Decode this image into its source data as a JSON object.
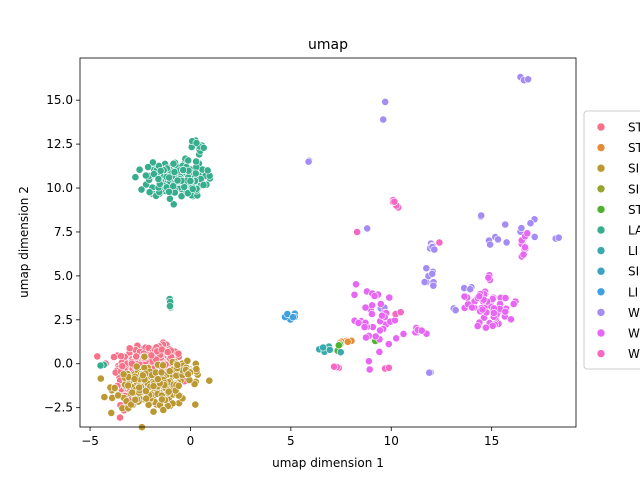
{
  "chart_data": {
    "type": "scatter",
    "title": "umap",
    "xlabel": "umap dimension 1",
    "ylabel": "umap dimension 2",
    "xlim": [
      -5.5,
      19.2
    ],
    "ylim": [
      -3.6,
      17.4
    ],
    "x_ticks": [
      {
        "value": -5,
        "label": "−5"
      },
      {
        "value": 0,
        "label": "0"
      },
      {
        "value": 5,
        "label": "5"
      },
      {
        "value": 10,
        "label": "10"
      },
      {
        "value": 15,
        "label": "15"
      }
    ],
    "y_ticks": [
      {
        "value": -2.5,
        "label": "−2.5"
      },
      {
        "value": 0,
        "label": "0.0"
      },
      {
        "value": 2.5,
        "label": "2.5"
      },
      {
        "value": 5,
        "label": "5.0"
      },
      {
        "value": 7.5,
        "label": "7.5"
      },
      {
        "value": 10,
        "label": "10.0"
      },
      {
        "value": 12.5,
        "label": "12.5"
      },
      {
        "value": 15,
        "label": "15.0"
      }
    ],
    "grid": false,
    "legend_position": "right, outside plot",
    "series": [
      {
        "name": "ST",
        "color": "#f77189",
        "clusters": [
          {
            "x": -2.2,
            "y": -0.1,
            "sx": 0.7,
            "sy": 0.45,
            "n": 260
          },
          {
            "x": -3.2,
            "y": -1.2,
            "sx": 0.3,
            "sy": 0.55,
            "n": 40
          },
          {
            "x": -1.5,
            "y": 0.5,
            "sx": 0.5,
            "sy": 0.3,
            "n": 40
          }
        ]
      },
      {
        "name": "ST",
        "color": "#e58d36",
        "clusters": [
          {
            "x": 7.6,
            "y": 1.3,
            "sx": 0.35,
            "sy": 0.12,
            "n": 5
          }
        ]
      },
      {
        "name": "SI",
        "color": "#bb9832",
        "clusters": [
          {
            "x": -1.9,
            "y": -1.4,
            "sx": 0.9,
            "sy": 0.55,
            "n": 250
          },
          {
            "x": -0.3,
            "y": -0.3,
            "sx": 0.35,
            "sy": 0.35,
            "n": 35
          }
        ]
      },
      {
        "name": "SI",
        "color": "#97a431",
        "clusters": []
      },
      {
        "name": "ST",
        "color": "#50b131",
        "clusters": [
          {
            "x": 7.5,
            "y": 0.9,
            "sx": 0.2,
            "sy": 0.2,
            "n": 3
          },
          {
            "x": 9.2,
            "y": 1.3,
            "sx": 0.1,
            "sy": 0.1,
            "n": 1
          }
        ]
      },
      {
        "name": "LA",
        "color": "#36ad8d",
        "clusters": [
          {
            "x": -0.7,
            "y": 10.5,
            "sx": 0.7,
            "sy": 0.5,
            "n": 230
          },
          {
            "x": 0.4,
            "y": 12.3,
            "sx": 0.15,
            "sy": 0.25,
            "n": 12
          },
          {
            "x": -1.0,
            "y": 3.3,
            "sx": 0.05,
            "sy": 0.2,
            "n": 5
          },
          {
            "x": -4.4,
            "y": -0.15,
            "sx": 0.1,
            "sy": 0.05,
            "n": 2
          }
        ]
      },
      {
        "name": "LI",
        "color": "#38aaac",
        "clusters": [
          {
            "x": 6.8,
            "y": 0.8,
            "sx": 0.3,
            "sy": 0.15,
            "n": 6
          }
        ]
      },
      {
        "name": "SI",
        "color": "#3ba3c2",
        "clusters": []
      },
      {
        "name": "LI",
        "color": "#3ea1dd",
        "clusters": [
          {
            "x": 5.0,
            "y": 2.6,
            "sx": 0.2,
            "sy": 0.15,
            "n": 8
          },
          {
            "x": 8.7,
            "y": 3.2,
            "sx": 0.1,
            "sy": 0.1,
            "n": 1
          }
        ]
      },
      {
        "name": "W",
        "color": "#a48cf4",
        "clusters": [
          {
            "x": 9.7,
            "y": 14.9,
            "sx": 0.05,
            "sy": 0.05,
            "n": 1
          },
          {
            "x": 9.6,
            "y": 13.9,
            "sx": 0.05,
            "sy": 0.05,
            "n": 1
          },
          {
            "x": 16.6,
            "y": 16.3,
            "sx": 0.2,
            "sy": 0.1,
            "n": 4
          },
          {
            "x": 5.9,
            "y": 11.5,
            "sx": 0.08,
            "sy": 0.05,
            "n": 3
          },
          {
            "x": 12.1,
            "y": 6.7,
            "sx": 0.2,
            "sy": 0.2,
            "n": 6
          },
          {
            "x": 11.9,
            "y": 5.0,
            "sx": 0.15,
            "sy": 0.4,
            "n": 8
          },
          {
            "x": 14.5,
            "y": 8.4,
            "sx": 0.05,
            "sy": 0.05,
            "n": 2
          },
          {
            "x": 16.3,
            "y": 7.6,
            "sx": 0.5,
            "sy": 0.3,
            "n": 8
          },
          {
            "x": 15.1,
            "y": 7.0,
            "sx": 0.3,
            "sy": 0.1,
            "n": 4
          },
          {
            "x": 18.3,
            "y": 7.1,
            "sx": 0.1,
            "sy": 0.05,
            "n": 2
          },
          {
            "x": 13.9,
            "y": 4.3,
            "sx": 0.15,
            "sy": 0.1,
            "n": 3
          },
          {
            "x": 13.1,
            "y": 3.1,
            "sx": 0.1,
            "sy": 0.05,
            "n": 2
          },
          {
            "x": 12.0,
            "y": -0.5,
            "sx": 0.1,
            "sy": 0.05,
            "n": 2
          },
          {
            "x": 9.5,
            "y": 3.1,
            "sx": 0.15,
            "sy": 0.1,
            "n": 2
          },
          {
            "x": 8.8,
            "y": 7.7,
            "sx": 0.05,
            "sy": 0.05,
            "n": 1
          }
        ]
      },
      {
        "name": "W",
        "color": "#e866f4",
        "clusters": [
          {
            "x": 15.0,
            "y": 3.0,
            "sx": 0.45,
            "sy": 0.45,
            "n": 45
          },
          {
            "x": 14.5,
            "y": 3.8,
            "sx": 0.3,
            "sy": 0.3,
            "n": 10
          },
          {
            "x": 9.2,
            "y": 2.5,
            "sx": 0.6,
            "sy": 0.9,
            "n": 40
          },
          {
            "x": 11.5,
            "y": 1.8,
            "sx": 0.4,
            "sy": 0.2,
            "n": 8
          },
          {
            "x": 15.0,
            "y": 4.9,
            "sx": 0.1,
            "sy": 0.1,
            "n": 3
          },
          {
            "x": 16.6,
            "y": 6.5,
            "sx": 0.2,
            "sy": 0.25,
            "n": 6
          },
          {
            "x": 16.7,
            "y": 7.3,
            "sx": 0.15,
            "sy": 0.1,
            "n": 3
          },
          {
            "x": 13.8,
            "y": 3.5,
            "sx": 0.2,
            "sy": 0.2,
            "n": 4
          },
          {
            "x": 16.1,
            "y": 3.4,
            "sx": 0.05,
            "sy": 0.05,
            "n": 1
          }
        ]
      },
      {
        "name": "W",
        "color": "#f668c2",
        "clusters": [
          {
            "x": 10.3,
            "y": 9.0,
            "sx": 0.15,
            "sy": 0.15,
            "n": 5
          },
          {
            "x": 12.4,
            "y": 6.9,
            "sx": 0.05,
            "sy": 0.05,
            "n": 1
          },
          {
            "x": 8.3,
            "y": 7.5,
            "sx": 0.05,
            "sy": 0.05,
            "n": 1
          },
          {
            "x": 7.3,
            "y": -0.3,
            "sx": 0.1,
            "sy": 0.2,
            "n": 3
          },
          {
            "x": 10.5,
            "y": 3.0,
            "sx": 0.1,
            "sy": 0.1,
            "n": 2
          },
          {
            "x": 9.9,
            "y": -0.2,
            "sx": 0.15,
            "sy": 0.1,
            "n": 2
          }
        ]
      }
    ]
  }
}
